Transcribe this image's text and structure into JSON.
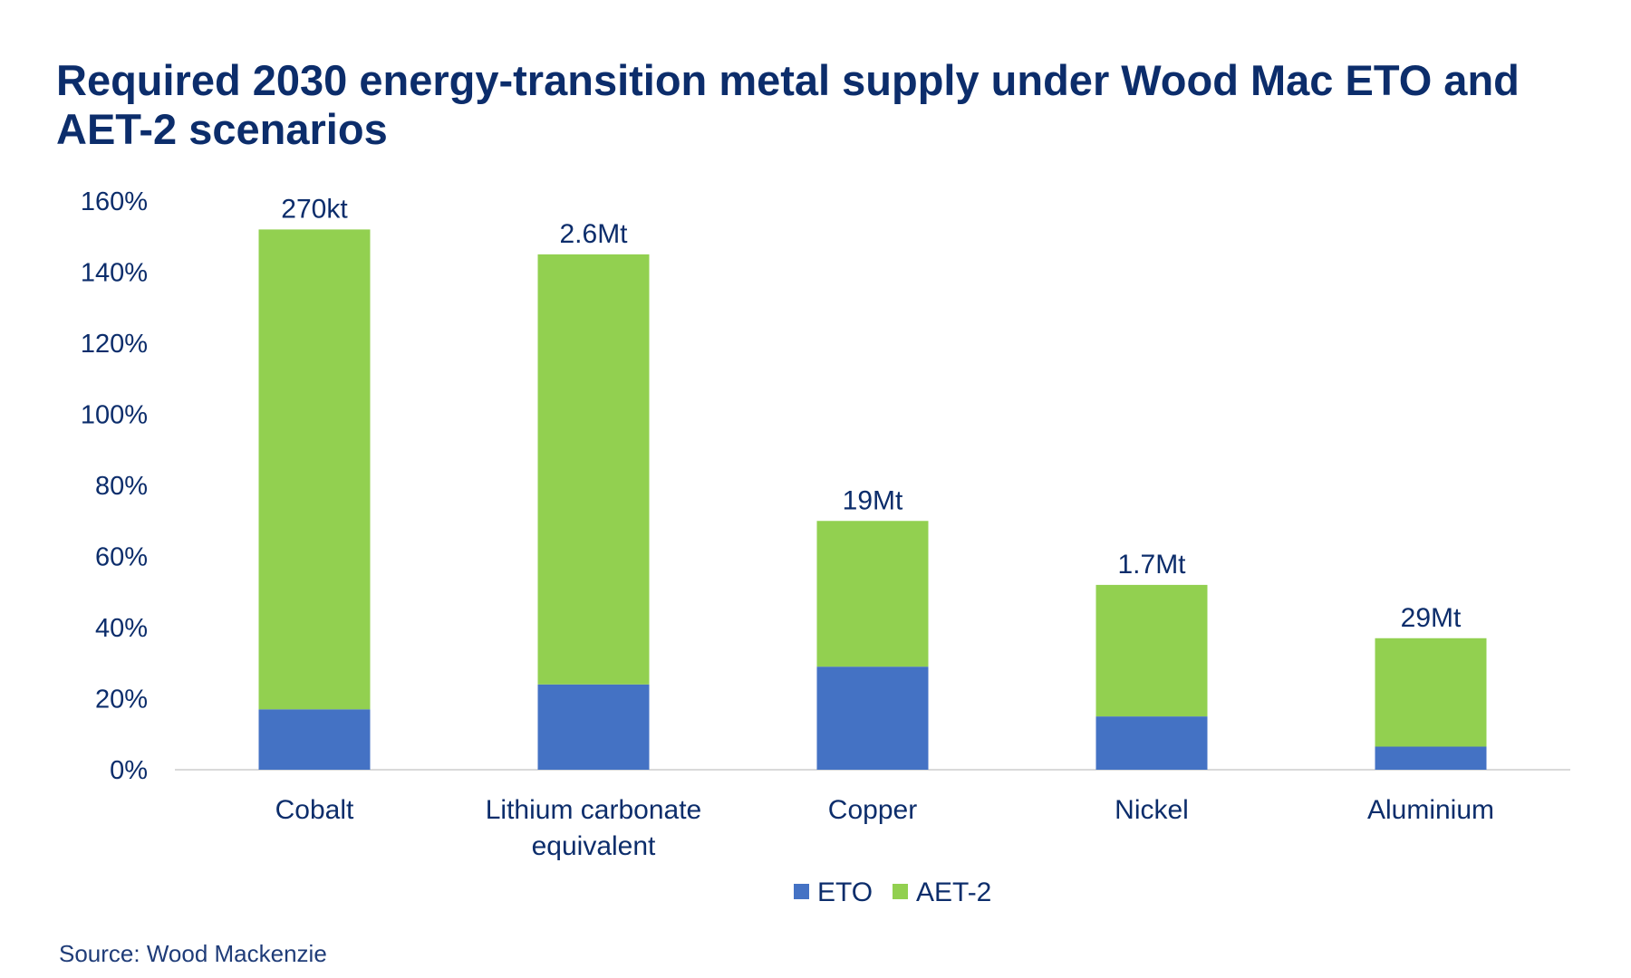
{
  "title": "Required 2030 energy-transition metal supply under Wood Mac ETO and AET-2 scenarios",
  "source": "Source: Wood Mackenzie",
  "colors": {
    "eto": "#4472c4",
    "aet2": "#92d050",
    "text": "#0c2d6b",
    "axis": "#d9d9d9"
  },
  "chart_data": {
    "type": "bar",
    "stacked": true,
    "categories": [
      "Cobalt",
      "Lithium carbonate equivalent",
      "Copper",
      "Nickel",
      "Aluminium"
    ],
    "series": [
      {
        "name": "ETO",
        "values": [
          17,
          24,
          29,
          15,
          6.5
        ]
      },
      {
        "name": "AET-2",
        "values": [
          135,
          121,
          41,
          37,
          30.5
        ]
      }
    ],
    "data_labels": [
      "270kt",
      "2.6Mt",
      "19Mt",
      "1.7Mt",
      "29Mt"
    ],
    "yticks": [
      "0%",
      "20%",
      "40%",
      "60%",
      "80%",
      "100%",
      "120%",
      "140%",
      "160%"
    ],
    "ylim": [
      0,
      160
    ],
    "y_unit": "%",
    "grid": false,
    "legend_position": "bottom"
  }
}
